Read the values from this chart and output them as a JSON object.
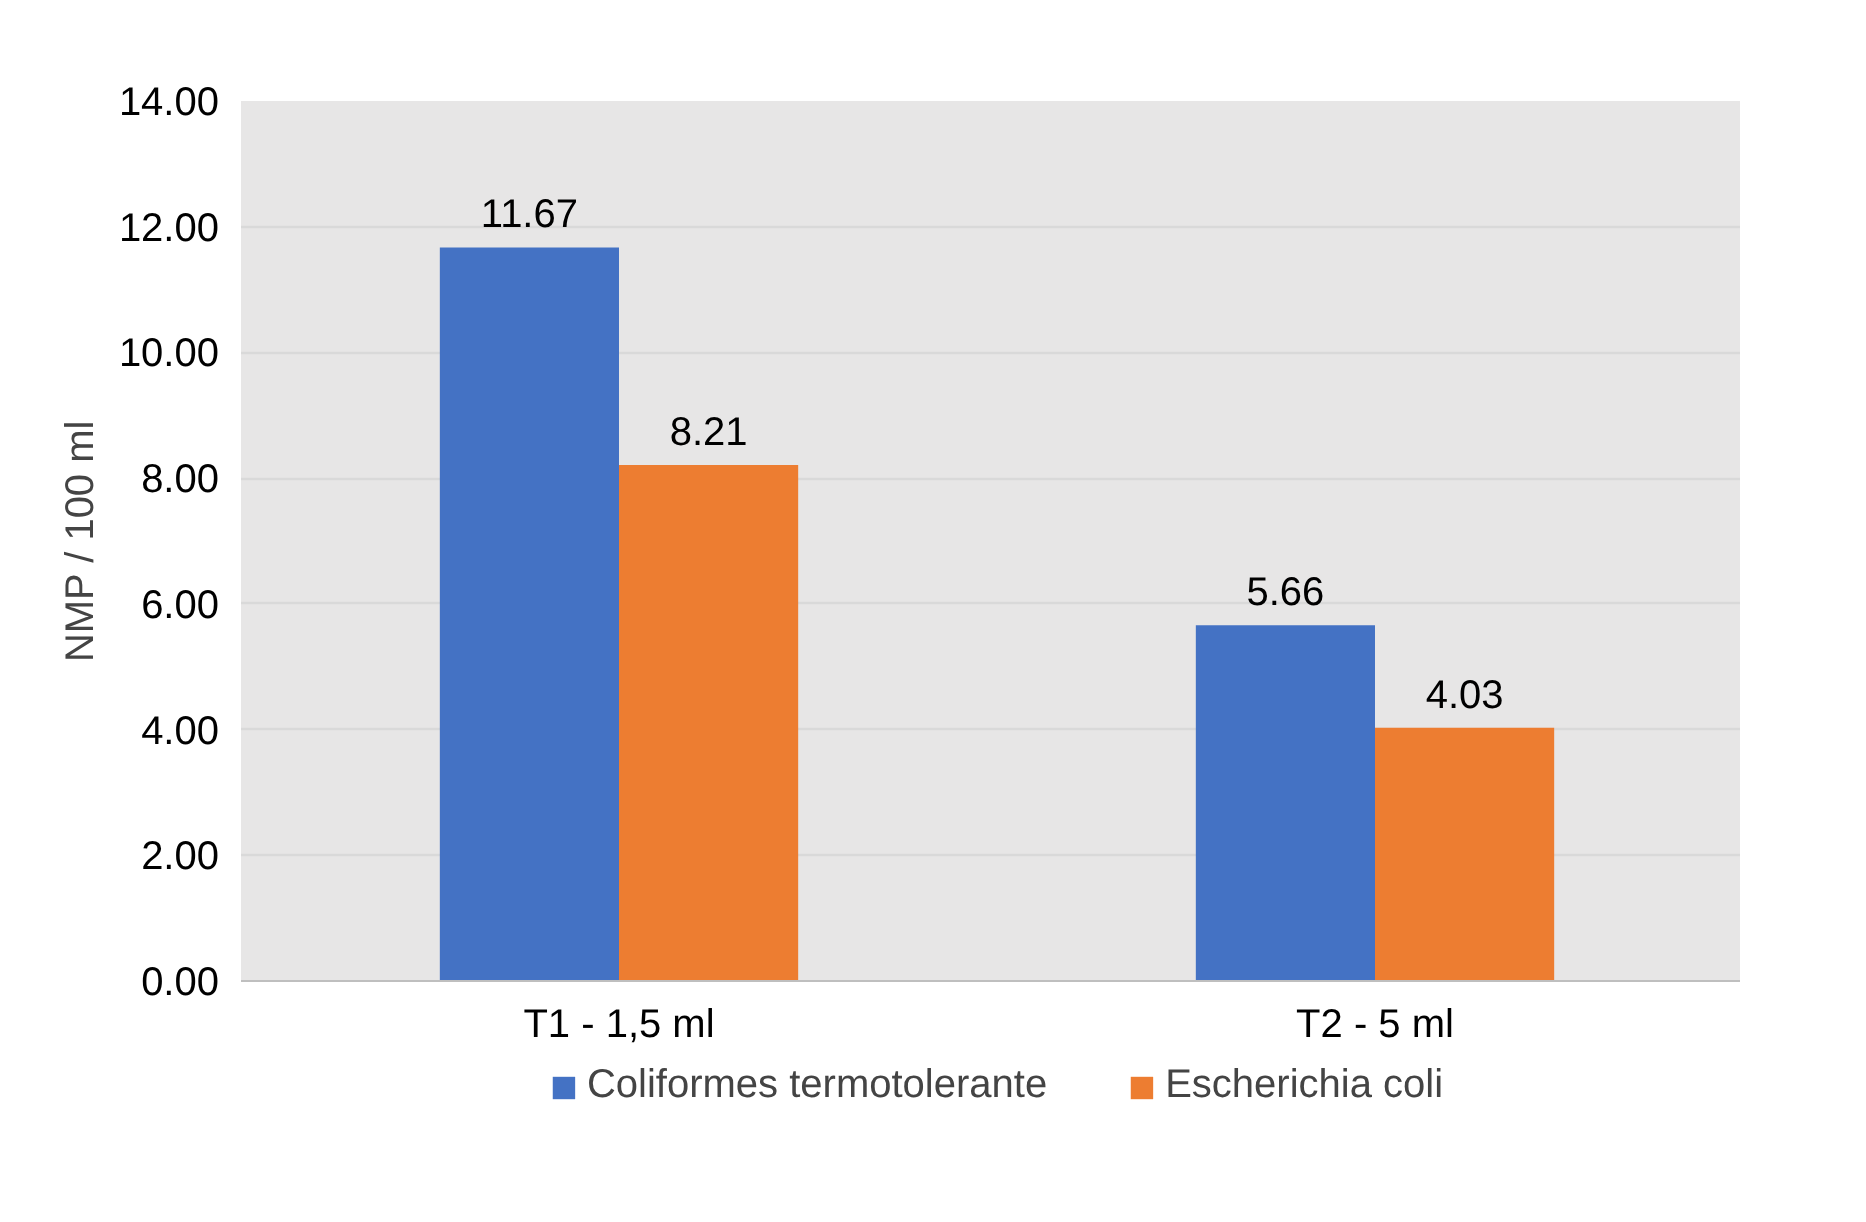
{
  "chart_data": {
    "type": "bar",
    "ylabel": "NMP / 100 ml",
    "categories": [
      "T1 - 1,5 ml",
      "T2 - 5 ml"
    ],
    "series": [
      {
        "name": "Coliformes termotolerante",
        "color": "#4472c4",
        "values": [
          11.67,
          5.66
        ]
      },
      {
        "name": "Escherichia coli",
        "color": "#ed7d31",
        "values": [
          8.21,
          4.03
        ]
      }
    ],
    "ylim": [
      0,
      14
    ],
    "yticks": [
      {
        "value": 0,
        "label": "0.00"
      },
      {
        "value": 2,
        "label": "2.00"
      },
      {
        "value": 4,
        "label": "4.00"
      },
      {
        "value": 6,
        "label": "6.00"
      },
      {
        "value": 8,
        "label": "8.00"
      },
      {
        "value": 10,
        "label": "10.00"
      },
      {
        "value": 12,
        "label": "12.00"
      },
      {
        "value": 14,
        "label": "14.00"
      }
    ],
    "grid": "y",
    "legend": "bottom",
    "data_labels": true
  }
}
